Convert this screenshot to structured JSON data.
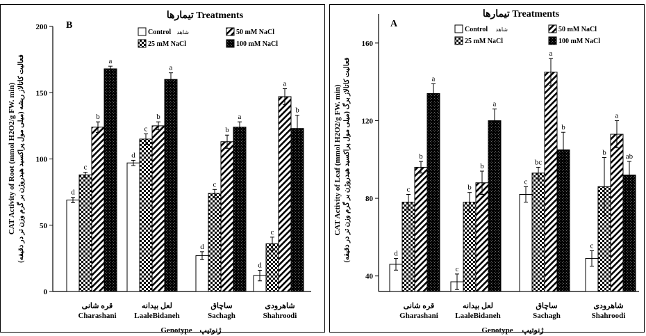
{
  "chart_data": [
    {
      "type": "bar",
      "panel_label": "B",
      "legend_title": "تیمارها  Treatments",
      "legend": {
        "entries": [
          {
            "key": "control",
            "label": "Control",
            "label_fa": "شاهد"
          },
          {
            "key": "nacl50",
            "label": "50 mM NaCl"
          },
          {
            "key": "nacl25",
            "label": "25 mM NaCl"
          },
          {
            "key": "nacl100",
            "label": "100 mM NaCl"
          }
        ]
      },
      "ylabel_en": "CAT Activity of Root (mmol H2O2/g FW. min)",
      "ylabel_fa": "فعالیت کاتالاز ریشه (میلی مول پراکسید هیدروژن بر گرم وزن تر در دقیقه)",
      "xlabel_en": "Genotype",
      "xlabel_fa": "ژنوتیپ",
      "ylim": [
        0,
        200
      ],
      "yticks": [
        0,
        50,
        100,
        150,
        200
      ],
      "categories": [
        {
          "fa": "قره شانی",
          "en": "Charashani"
        },
        {
          "fa": "لعل بیدانه",
          "en": "LaaleBidaneh"
        },
        {
          "fa": "ساچاق",
          "en": "Sachagh"
        },
        {
          "fa": "شاهرودی",
          "en": "Shahroodi"
        }
      ],
      "series": [
        {
          "name": "Control",
          "pattern": "control",
          "values": [
            69,
            97,
            27,
            12
          ],
          "errors": [
            2,
            2,
            3,
            4
          ],
          "letters": [
            "d",
            "d",
            "d",
            "d"
          ]
        },
        {
          "name": "25 mM NaCl",
          "pattern": "nacl25",
          "values": [
            88,
            115,
            74,
            36
          ],
          "errors": [
            2,
            4,
            3,
            5
          ],
          "letters": [
            "c",
            "c",
            "c",
            "c"
          ]
        },
        {
          "name": "50 mM NaCl",
          "pattern": "nacl50",
          "values": [
            124,
            125,
            113,
            147
          ],
          "errors": [
            4,
            3,
            5,
            6
          ],
          "letters": [
            "b",
            "b",
            "b",
            "a"
          ]
        },
        {
          "name": "100 mM NaCl",
          "pattern": "nacl100",
          "values": [
            168,
            160,
            124,
            123
          ],
          "errors": [
            2,
            5,
            4,
            10
          ],
          "letters": [
            "a",
            "a",
            "a",
            "b"
          ]
        }
      ]
    },
    {
      "type": "bar",
      "panel_label": "A",
      "legend_title": "تیمارها  Treatments",
      "legend": {
        "entries": [
          {
            "key": "control",
            "label": "Control",
            "label_fa": "شاهد"
          },
          {
            "key": "nacl50",
            "label": "50 mM NaCl"
          },
          {
            "key": "nacl25",
            "label": "25 mM NaCl"
          },
          {
            "key": "nacl100",
            "label": "100 mM NaCl"
          }
        ]
      },
      "ylabel_en": "CAT Activity of Leaf (mmol H2O2/g FW. min)",
      "ylabel_fa": "فعالیت کاتالاز برگ (میلی مول پراکسید هیدروژن بر گرم وزن تر در دقیقه)",
      "xlabel_en": "Genotype",
      "xlabel_fa": "ژنوتیپ",
      "ylim": [
        32,
        175
      ],
      "yticks": [
        40,
        80,
        120,
        160
      ],
      "categories": [
        {
          "fa": "قره شانی",
          "en": "Gharashani"
        },
        {
          "fa": "لعل بیدانه",
          "en": "LaaleBidaneh"
        },
        {
          "fa": "ساچاق",
          "en": "Sachagh"
        },
        {
          "fa": "شاهرودی",
          "en": "Shahroodi"
        }
      ],
      "series": [
        {
          "name": "Control",
          "pattern": "control",
          "values": [
            46,
            37,
            82,
            49
          ],
          "errors": [
            3,
            4,
            4,
            4
          ],
          "letters": [
            "d",
            "c",
            "c",
            "c"
          ]
        },
        {
          "name": "25 mM NaCl",
          "pattern": "nacl25",
          "values": [
            78,
            78,
            93,
            86
          ],
          "errors": [
            4,
            5,
            3,
            15
          ],
          "letters": [
            "c",
            "b",
            "bc",
            "b"
          ]
        },
        {
          "name": "50 mM NaCl",
          "pattern": "nacl50",
          "values": [
            96,
            88,
            145,
            113
          ],
          "errors": [
            3,
            6,
            7,
            7
          ],
          "letters": [
            "b",
            "b",
            "a",
            "a"
          ]
        },
        {
          "name": "100 mM NaCl",
          "pattern": "nacl100",
          "values": [
            134,
            120,
            105,
            92
          ],
          "errors": [
            5,
            6,
            9,
            7
          ],
          "letters": [
            "a",
            "a",
            "b",
            "ab"
          ]
        }
      ]
    }
  ]
}
